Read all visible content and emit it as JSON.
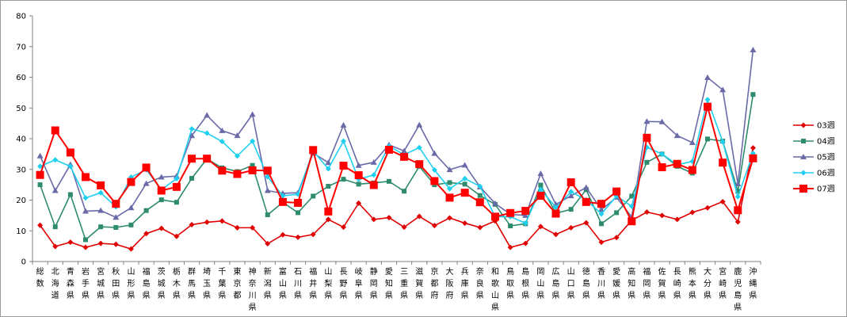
{
  "chart_data": {
    "type": "line",
    "ylim": [
      0,
      80
    ],
    "yticks": [
      0,
      10,
      20,
      30,
      40,
      50,
      60,
      70,
      80
    ],
    "grid": false,
    "legend_position": "right",
    "categories": [
      "総数",
      "北海道",
      "青森県",
      "岩手県",
      "宮城県",
      "秋田県",
      "山形県",
      "福島県",
      "茨城県",
      "栃木県",
      "群馬県",
      "埼玉県",
      "千葉県",
      "東京都",
      "神奈川県",
      "新潟県",
      "富山県",
      "石川県",
      "福井県",
      "山梨県",
      "長野県",
      "岐阜県",
      "静岡県",
      "愛知県",
      "三重県",
      "滋賀県",
      "京都府",
      "大阪府",
      "兵庫県",
      "奈良県",
      "和歌山県",
      "鳥取県",
      "島根県",
      "岡山県",
      "広島県",
      "山口県",
      "徳島県",
      "香川県",
      "愛媛県",
      "高知県",
      "福岡県",
      "佐賀県",
      "長崎県",
      "熊本県",
      "大分県",
      "宮崎県",
      "鹿児島県",
      "沖縄県"
    ],
    "series": [
      {
        "name": "03週",
        "color": "#e00000",
        "marker": "diamond",
        "values": [
          11.8,
          4.9,
          6.3,
          4.6,
          5.9,
          5.6,
          4.1,
          9.1,
          10.8,
          8.2,
          12.0,
          12.8,
          13.2,
          11.0,
          11.0,
          5.8,
          8.7,
          7.9,
          8.8,
          13.7,
          11.2,
          19.0,
          13.7,
          14.3,
          11.2,
          14.7,
          11.7,
          14.2,
          12.5,
          11.1,
          13.2,
          4.6,
          5.9,
          11.4,
          8.8,
          11.0,
          12.6,
          6.3,
          7.8,
          13.4,
          16.1,
          15.0,
          13.7,
          16.0,
          17.5,
          19.5,
          12.9,
          37.0
        ]
      },
      {
        "name": "04週",
        "color": "#2e8b6e",
        "marker": "square",
        "values": [
          25.0,
          11.3,
          21.8,
          7.1,
          11.3,
          11.1,
          11.9,
          16.6,
          20.1,
          19.3,
          27.1,
          33.4,
          30.5,
          29.3,
          31.3,
          15.2,
          19.3,
          15.9,
          21.3,
          24.5,
          26.8,
          25.2,
          25.6,
          26.1,
          22.9,
          31.0,
          25.0,
          25.7,
          25.2,
          21.5,
          18.6,
          11.6,
          12.3,
          24.9,
          15.7,
          17.0,
          23.4,
          12.3,
          15.9,
          21.3,
          32.3,
          35.0,
          31.0,
          28.8,
          39.9,
          39.2,
          22.9,
          54.4
        ]
      },
      {
        "name": "05週",
        "color": "#6a6aa8",
        "marker": "triangle",
        "values": [
          34.4,
          23.1,
          31.6,
          16.4,
          16.6,
          14.4,
          17.5,
          25.4,
          27.5,
          27.8,
          41.0,
          47.6,
          42.6,
          41.0,
          47.9,
          23.1,
          22.2,
          22.4,
          35.3,
          32.2,
          44.4,
          31.3,
          32.3,
          38.0,
          36.0,
          44.5,
          35.2,
          29.9,
          31.4,
          24.3,
          18.9,
          15.4,
          15.0,
          28.6,
          18.6,
          21.4,
          24.1,
          16.9,
          20.9,
          14.5,
          45.6,
          45.5,
          41.0,
          38.7,
          59.9,
          55.9,
          25.3,
          68.9
        ]
      },
      {
        "name": "06週",
        "color": "#1ed0f0",
        "marker": "diamond",
        "values": [
          31.0,
          33.1,
          31.0,
          20.7,
          22.4,
          17.8,
          27.5,
          29.9,
          23.4,
          27.0,
          43.2,
          41.8,
          39.1,
          34.4,
          39.2,
          27.6,
          21.4,
          21.9,
          36.0,
          30.2,
          39.2,
          26.8,
          28.2,
          37.6,
          34.8,
          37.1,
          29.8,
          23.7,
          27.0,
          24.5,
          14.6,
          14.6,
          12.5,
          23.5,
          17.6,
          22.7,
          20.1,
          15.5,
          21.3,
          18.0,
          37.2,
          35.0,
          31.5,
          32.6,
          52.7,
          39.0,
          21.1,
          35.2
        ]
      },
      {
        "name": "07週",
        "color": "#ff0000",
        "marker": "bigsquare",
        "values": [
          28.2,
          42.7,
          35.5,
          27.5,
          24.8,
          18.8,
          25.9,
          30.6,
          23.1,
          24.3,
          33.5,
          33.5,
          29.6,
          28.5,
          29.7,
          29.6,
          19.4,
          19.1,
          36.3,
          16.3,
          31.2,
          28.1,
          24.9,
          36.4,
          34.1,
          31.7,
          26.2,
          20.8,
          22.4,
          19.3,
          14.6,
          15.8,
          16.5,
          21.4,
          15.6,
          25.8,
          19.4,
          18.8,
          22.8,
          13.1,
          40.3,
          30.7,
          31.8,
          29.8,
          50.4,
          32.2,
          16.7,
          33.6
        ]
      }
    ]
  }
}
